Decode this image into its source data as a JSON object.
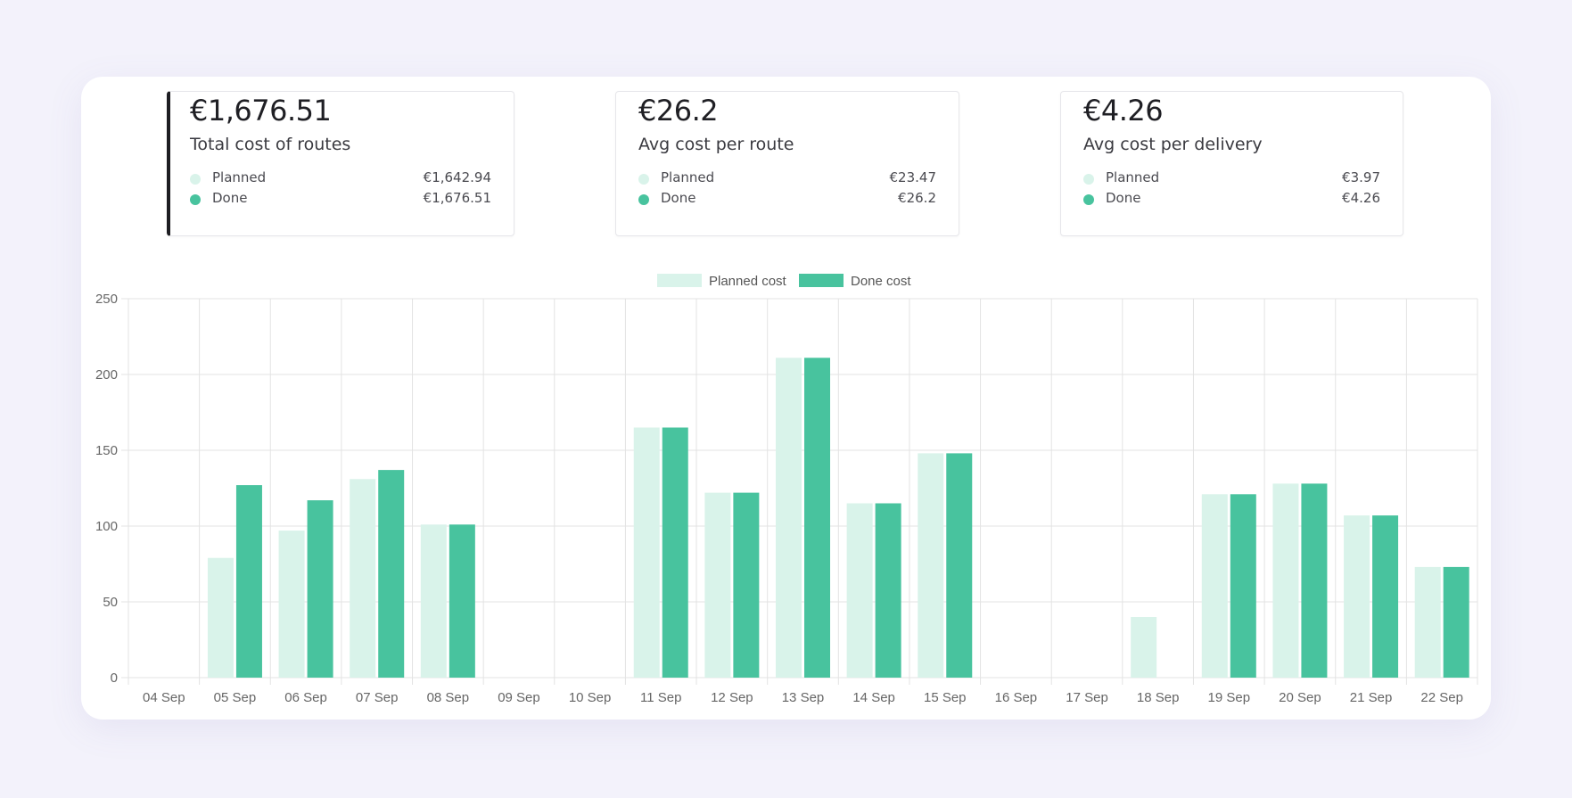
{
  "colors": {
    "planned": "#d9f3ea",
    "done": "#48c39e",
    "grid": "#e3e3e3",
    "background": "#f3f2fb"
  },
  "cards": [
    {
      "value": "€1,676.51",
      "label": "Total cost of routes",
      "planned_label": "Planned",
      "planned_value": "€1,642.94",
      "done_label": "Done",
      "done_value": "€1,676.51",
      "selected": true
    },
    {
      "value": "€26.2",
      "label": "Avg cost per route",
      "planned_label": "Planned",
      "planned_value": "€23.47",
      "done_label": "Done",
      "done_value": "€26.2",
      "selected": false
    },
    {
      "value": "€4.26",
      "label": "Avg cost per delivery",
      "planned_label": "Planned",
      "planned_value": "€3.97",
      "done_label": "Done",
      "done_value": "€4.26",
      "selected": false
    }
  ],
  "chart_data": {
    "type": "bar",
    "title": "",
    "xlabel": "",
    "ylabel": "",
    "ylim": [
      0,
      250
    ],
    "yticks": [
      0,
      50,
      100,
      150,
      200,
      250
    ],
    "grid": true,
    "legend": "top-center",
    "categories": [
      "04 Sep",
      "05 Sep",
      "06 Sep",
      "07 Sep",
      "08 Sep",
      "09 Sep",
      "10 Sep",
      "11 Sep",
      "12 Sep",
      "13 Sep",
      "14 Sep",
      "15 Sep",
      "16 Sep",
      "17 Sep",
      "18 Sep",
      "19 Sep",
      "20 Sep",
      "21 Sep",
      "22 Sep"
    ],
    "series": [
      {
        "name": "Planned cost",
        "color": "#d9f3ea",
        "values": [
          0,
          79,
          97,
          131,
          101,
          0,
          0,
          165,
          122,
          211,
          115,
          148,
          0,
          0,
          40,
          121,
          128,
          107,
          73
        ]
      },
      {
        "name": "Done cost",
        "color": "#48c39e",
        "values": [
          0,
          127,
          117,
          137,
          101,
          0,
          0,
          165,
          122,
          211,
          115,
          148,
          0,
          0,
          0,
          121,
          128,
          107,
          73
        ]
      }
    ]
  }
}
